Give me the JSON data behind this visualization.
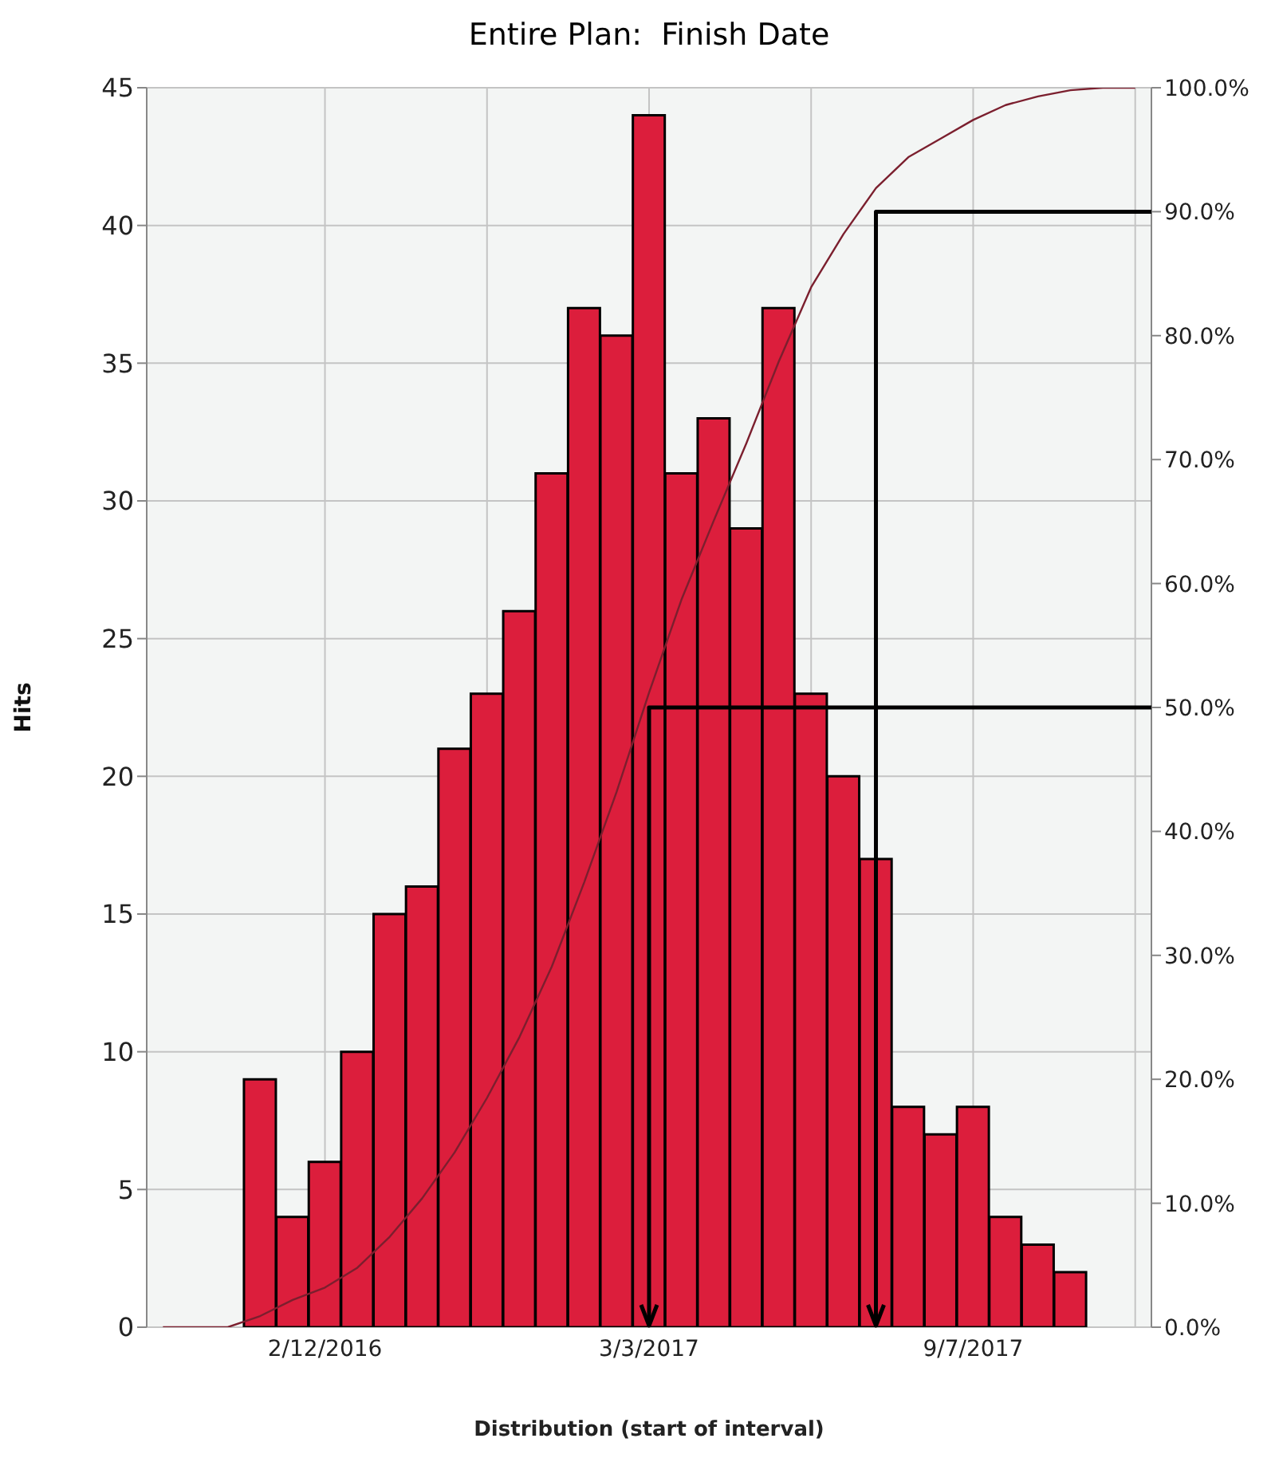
{
  "chart_data": {
    "type": "bar",
    "title": "Entire Plan:  Finish Date",
    "xlabel": "Distribution (start of interval)",
    "ylabel": "Hits",
    "categories": [
      null,
      null,
      null,
      null,
      null,
      "2/12/2016",
      null,
      null,
      null,
      null,
      null,
      null,
      null,
      null,
      null,
      "3/3/2017",
      null,
      null,
      null,
      null,
      null,
      null,
      null,
      null,
      null,
      "9/7/2017",
      null,
      null,
      null,
      null,
      null
    ],
    "series": [
      {
        "color": "#dc1e3c",
        "values": [
          0,
          0,
          0,
          9,
          4,
          6,
          10,
          15,
          16,
          21,
          23,
          26,
          31,
          37,
          36,
          44,
          31,
          33,
          29,
          37,
          23,
          20,
          17,
          8,
          7,
          8,
          4,
          3,
          2,
          0,
          0
        ]
      },
      {
        "type": "line",
        "axis": "y2",
        "color": "#7b1f2e",
        "values": [
          0,
          0,
          0,
          0.9,
          2.2,
          3.2,
          4.8,
          7.3,
          10.4,
          14.1,
          18.5,
          23.4,
          29.1,
          35.9,
          43.2,
          51.2,
          58.7,
          65.1,
          71.3,
          77.9,
          83.9,
          88.2,
          91.9,
          94.4,
          95.9,
          97.4,
          98.6,
          99.3,
          99.8,
          100,
          100
        ]
      }
    ],
    "ylim": [
      0,
      45
    ],
    "yticks": [
      0,
      5,
      10,
      15,
      20,
      25,
      30,
      35,
      40,
      45
    ],
    "y2lim": [
      0,
      100
    ],
    "y2ticks": [
      {
        "value": 0,
        "label": "0.0%"
      },
      {
        "value": 10,
        "label": "10.0%"
      },
      {
        "value": 20,
        "label": "20.0%"
      },
      {
        "value": 30,
        "label": "30.0%"
      },
      {
        "value": 40,
        "label": "40.0%"
      },
      {
        "value": 50,
        "label": "50.0%"
      },
      {
        "value": 60,
        "label": "60.0%"
      },
      {
        "value": 70,
        "label": "70.0%"
      },
      {
        "value": 80,
        "label": "80.0%"
      },
      {
        "value": 90,
        "label": "90.0%"
      },
      {
        "value": 100,
        "label": "100.0%"
      }
    ],
    "ref_lines": [
      {
        "axis": "y2",
        "value": 50,
        "color": "#000000"
      },
      {
        "axis": "y2",
        "value": 90,
        "color": "#000000"
      }
    ],
    "grid": true,
    "legend": false
  }
}
